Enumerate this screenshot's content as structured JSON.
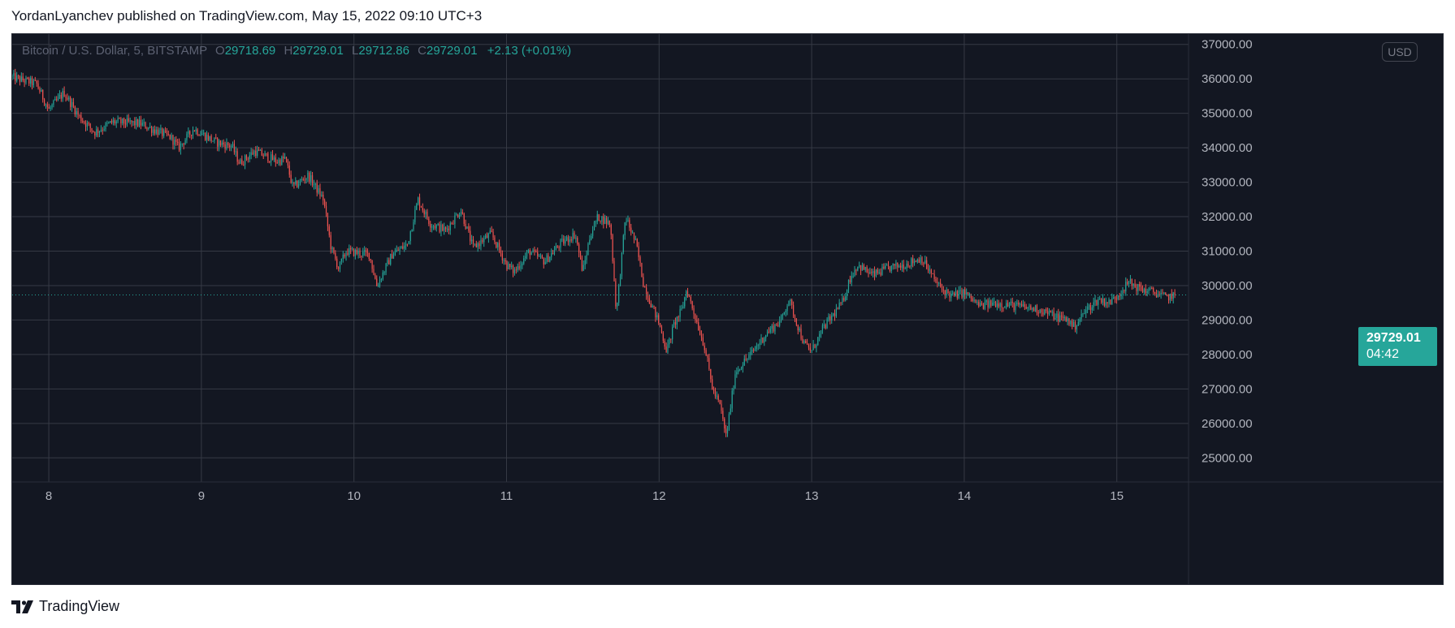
{
  "header": {
    "published_line": "YordanLyanchev published on TradingView.com, May 15, 2022 09:10 UTC+3"
  },
  "legend": {
    "symbol": "Bitcoin / U.S. Dollar, 5, BITSTAMP",
    "open_label": "O",
    "open": "29718.69",
    "high_label": "H",
    "high": "29729.01",
    "low_label": "L",
    "low": "29712.86",
    "close_label": "C",
    "close": "29729.01",
    "change": "+2.13 (+0.01%)"
  },
  "currency_button": {
    "label": "USD"
  },
  "last_price_tag": {
    "price": "29729.01",
    "countdown": "04:42"
  },
  "footer": {
    "brand": "TradingView"
  },
  "colors": {
    "background": "#131722",
    "grid": "#363a45",
    "up": "#26a69a",
    "down": "#ef5350",
    "axis_text": "#b2b5be"
  },
  "chart_data": {
    "type": "candlestick",
    "ylim": [
      24300,
      37300
    ],
    "y_ticks": [
      25000,
      26000,
      27000,
      28000,
      29000,
      30000,
      31000,
      32000,
      33000,
      34000,
      35000,
      36000,
      37000
    ],
    "y_tick_labels": [
      "25000.00",
      "26000.00",
      "27000.00",
      "28000.00",
      "29000.00",
      "30000.00",
      "31000.00",
      "32000.00",
      "33000.00",
      "34000.00",
      "35000.00",
      "36000.00",
      "37000.00"
    ],
    "x_ticks": [
      8,
      9,
      10,
      11,
      12,
      13,
      14,
      15
    ],
    "x_tick_labels": [
      "8",
      "9",
      "10",
      "11",
      "12",
      "13",
      "14",
      "15"
    ],
    "xlim": [
      7.76,
      15.47
    ],
    "x_last": 15.38,
    "last_price": 29729.01,
    "price_path": [
      [
        7.76,
        36050
      ],
      [
        7.92,
        35850
      ],
      [
        8.0,
        35100
      ],
      [
        8.1,
        35600
      ],
      [
        8.2,
        34900
      ],
      [
        8.3,
        34450
      ],
      [
        8.42,
        34750
      ],
      [
        8.6,
        34700
      ],
      [
        8.8,
        34300
      ],
      [
        8.85,
        34000
      ],
      [
        8.95,
        34550
      ],
      [
        9.1,
        34150
      ],
      [
        9.2,
        34050
      ],
      [
        9.25,
        33550
      ],
      [
        9.35,
        33900
      ],
      [
        9.5,
        33600
      ],
      [
        9.55,
        33700
      ],
      [
        9.6,
        32850
      ],
      [
        9.7,
        33200
      ],
      [
        9.8,
        32500
      ],
      [
        9.85,
        31100
      ],
      [
        9.9,
        30500
      ],
      [
        9.95,
        31000
      ],
      [
        10.1,
        30900
      ],
      [
        10.15,
        30000
      ],
      [
        10.25,
        30900
      ],
      [
        10.35,
        31200
      ],
      [
        10.42,
        32500
      ],
      [
        10.5,
        31800
      ],
      [
        10.6,
        31600
      ],
      [
        10.7,
        32200
      ],
      [
        10.78,
        31100
      ],
      [
        10.9,
        31500
      ],
      [
        11.0,
        30600
      ],
      [
        11.05,
        30400
      ],
      [
        11.15,
        31000
      ],
      [
        11.25,
        30700
      ],
      [
        11.35,
        31200
      ],
      [
        11.45,
        31500
      ],
      [
        11.5,
        30400
      ],
      [
        11.55,
        31500
      ],
      [
        11.6,
        32000
      ],
      [
        11.68,
        31800
      ],
      [
        11.72,
        29200
      ],
      [
        11.78,
        32000
      ],
      [
        11.85,
        31200
      ],
      [
        11.9,
        30000
      ],
      [
        12.0,
        28900
      ],
      [
        12.05,
        28100
      ],
      [
        12.1,
        28900
      ],
      [
        12.15,
        29300
      ],
      [
        12.18,
        29900
      ],
      [
        12.3,
        28200
      ],
      [
        12.35,
        27000
      ],
      [
        12.4,
        26500
      ],
      [
        12.44,
        25600
      ],
      [
        12.5,
        27500
      ],
      [
        12.6,
        28000
      ],
      [
        12.7,
        28600
      ],
      [
        12.8,
        29000
      ],
      [
        12.85,
        29600
      ],
      [
        12.95,
        28300
      ],
      [
        13.0,
        28100
      ],
      [
        13.08,
        28800
      ],
      [
        13.15,
        29200
      ],
      [
        13.2,
        29500
      ],
      [
        13.25,
        30200
      ],
      [
        13.3,
        30600
      ],
      [
        13.4,
        30300
      ],
      [
        13.5,
        30500
      ],
      [
        13.6,
        30600
      ],
      [
        13.72,
        30800
      ],
      [
        13.8,
        30200
      ],
      [
        13.85,
        29900
      ],
      [
        13.92,
        29700
      ],
      [
        14.0,
        29800
      ],
      [
        14.1,
        29400
      ],
      [
        14.2,
        29500
      ],
      [
        14.35,
        29400
      ],
      [
        14.5,
        29300
      ],
      [
        14.6,
        29100
      ],
      [
        14.68,
        29000
      ],
      [
        14.72,
        28800
      ],
      [
        14.8,
        29300
      ],
      [
        14.88,
        29600
      ],
      [
        14.95,
        29500
      ],
      [
        15.0,
        29700
      ],
      [
        15.08,
        30100
      ],
      [
        15.15,
        29900
      ],
      [
        15.25,
        29800
      ],
      [
        15.32,
        29650
      ],
      [
        15.38,
        29729
      ]
    ]
  }
}
